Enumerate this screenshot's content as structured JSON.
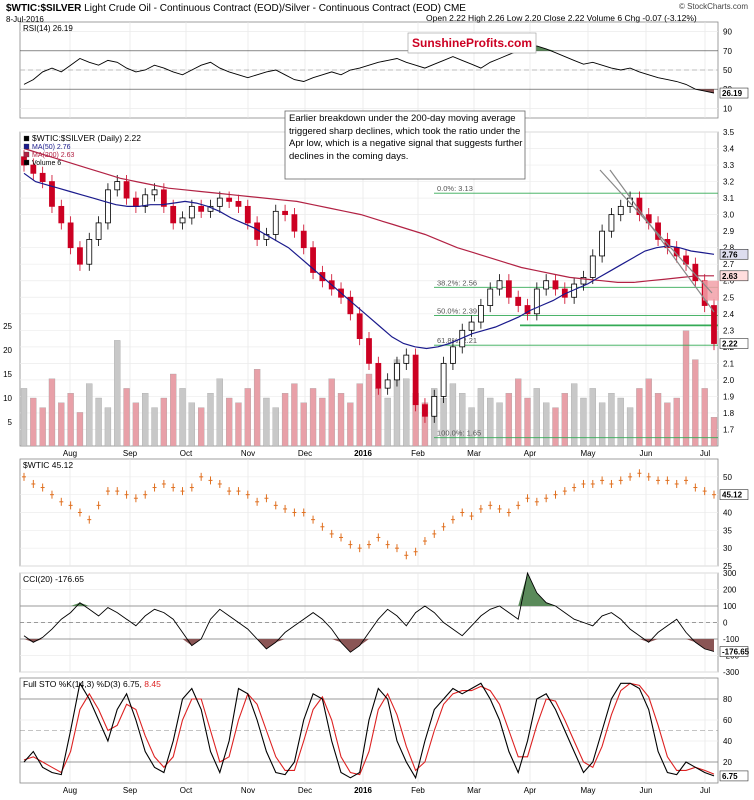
{
  "header": {
    "symbol": "$WTIC:$SILVER",
    "description": "Light Crude Oil - Continuous Contract (EOD)/Silver - Continuous Contract (EOD)",
    "exchange": "CME",
    "date": "8-Jul-2016",
    "ohlc": "Open 2.22  High 2.26  Low 2.20  Close 2.22  Volume 6  Chg -0.07 (-3.12%)",
    "copyright": "© StockCharts.com",
    "watermark": "SunshineProfits.com"
  },
  "colors": {
    "price_up": "#000000",
    "price_down": "#cc0022",
    "ma50": "#1a1a8c",
    "ma200": "#b22244",
    "fib": "#33aa55",
    "volume": "#c8c8c8",
    "volume_down": "#e8a0a8",
    "wtic": "#e07020",
    "fill_green": "#5a8a5a",
    "fill_red": "#8a5555",
    "sto_fast": "#000000",
    "sto_slow": "#dd2222",
    "watermark": "#cc0022"
  },
  "chart_data": [
    {
      "panel": "rsi",
      "type": "line",
      "legend": "RSI(14) 26.19",
      "last_label": "26.19",
      "ylim": [
        0,
        100
      ],
      "yticks": [
        10,
        30,
        50,
        70,
        90
      ],
      "levels": [
        30,
        70
      ],
      "values": [
        35,
        40,
        48,
        52,
        48,
        55,
        62,
        58,
        55,
        60,
        58,
        52,
        48,
        50,
        55,
        52,
        48,
        45,
        50,
        55,
        58,
        52,
        48,
        45,
        42,
        45,
        48,
        50,
        45,
        40,
        38,
        42,
        45,
        48,
        45,
        50,
        52,
        55,
        58,
        60,
        62,
        58,
        55,
        52,
        56,
        60,
        64,
        60,
        56,
        52,
        58,
        62,
        66,
        70,
        72,
        75,
        72,
        68,
        64,
        60,
        56,
        58,
        55,
        52,
        50,
        52,
        48,
        45,
        42,
        40,
        38,
        35,
        30,
        28,
        26
      ]
    },
    {
      "panel": "price",
      "type": "candlestick",
      "legend": [
        "$WTIC:$SILVER (Daily) 2.22",
        "MA(50) 2.76",
        "MA(200) 2.63",
        "Volume 6"
      ],
      "ylim": [
        1.6,
        3.5
      ],
      "yticks": [
        1.7,
        1.8,
        1.9,
        2.0,
        2.1,
        2.2,
        2.3,
        2.4,
        2.5,
        2.6,
        2.7,
        2.8,
        2.9,
        3.0,
        3.1,
        3.2,
        3.3,
        3.4,
        3.5
      ],
      "last_price_label": "2.22",
      "ma50_label": "2.76",
      "ma200_label": "2.63",
      "annotation": "Earlier breakdown under the 200-day moving average triggered sharp declines, which took the ratio under the Apr low, which is a negative signal that suggests further declines in the coming days.",
      "close": [
        3.3,
        3.25,
        3.2,
        3.05,
        2.95,
        2.8,
        2.7,
        2.85,
        2.95,
        3.15,
        3.2,
        3.1,
        3.05,
        3.12,
        3.15,
        3.05,
        2.95,
        2.98,
        3.05,
        3.02,
        3.05,
        3.1,
        3.08,
        3.05,
        2.95,
        2.85,
        2.88,
        3.02,
        3.0,
        2.9,
        2.8,
        2.65,
        2.6,
        2.55,
        2.5,
        2.4,
        2.25,
        2.1,
        1.95,
        2.0,
        2.1,
        2.15,
        1.85,
        1.78,
        1.9,
        2.1,
        2.2,
        2.3,
        2.35,
        2.45,
        2.55,
        2.6,
        2.5,
        2.45,
        2.4,
        2.55,
        2.6,
        2.55,
        2.5,
        2.58,
        2.62,
        2.75,
        2.9,
        3.0,
        3.05,
        3.1,
        3.0,
        2.95,
        2.85,
        2.8,
        2.75,
        2.7,
        2.6,
        2.45,
        2.22
      ],
      "ma50": [
        3.25,
        3.2,
        3.18,
        3.16,
        3.14,
        3.12,
        3.1,
        3.08,
        3.06,
        3.05,
        3.05,
        3.06,
        3.06,
        3.07,
        3.08,
        3.07,
        3.05,
        3.02,
        2.98,
        2.95,
        2.92,
        2.88,
        2.84,
        2.8,
        2.74,
        2.68,
        2.62,
        2.56,
        2.5,
        2.44,
        2.38,
        2.32,
        2.26,
        2.22,
        2.2,
        2.19,
        2.2,
        2.22,
        2.25,
        2.28,
        2.3,
        2.32,
        2.35,
        2.38,
        2.42,
        2.45,
        2.48,
        2.52,
        2.55,
        2.58,
        2.62,
        2.66,
        2.7,
        2.74,
        2.78,
        2.8,
        2.81,
        2.8,
        2.78,
        2.77,
        2.76
      ],
      "ma200": [
        3.4,
        3.37,
        3.34,
        3.31,
        3.28,
        3.25,
        3.22,
        3.2,
        3.18,
        3.16,
        3.15,
        3.14,
        3.13,
        3.12,
        3.11,
        3.1,
        3.09,
        3.08,
        3.06,
        3.04,
        3.02,
        3.0,
        2.97,
        2.94,
        2.91,
        2.88,
        2.84,
        2.8,
        2.77,
        2.74,
        2.71,
        2.68,
        2.66,
        2.64,
        2.62,
        2.61,
        2.6,
        2.59,
        2.59,
        2.6,
        2.61,
        2.62,
        2.63,
        2.63
      ],
      "fib_levels": [
        {
          "label": "0.0%: 3.13",
          "value": 3.13
        },
        {
          "label": "38.2%: 2.56",
          "value": 2.56
        },
        {
          "label": "50.0%: 2.39",
          "value": 2.39
        },
        {
          "label": "61.8%: 2.21",
          "value": 2.21
        },
        {
          "label": "100.0%: 1.65",
          "value": 1.65
        }
      ],
      "volume_ylim": [
        0,
        25
      ],
      "volume_ticks": [
        5,
        10,
        15,
        20,
        25
      ],
      "volume": [
        12,
        10,
        8,
        14,
        9,
        11,
        7,
        13,
        10,
        8,
        22,
        12,
        9,
        11,
        8,
        10,
        15,
        12,
        9,
        8,
        11,
        14,
        10,
        9,
        12,
        16,
        10,
        8,
        11,
        13,
        9,
        12,
        10,
        14,
        11,
        9,
        13,
        15,
        12,
        10,
        18,
        14,
        11,
        9,
        12,
        10,
        13,
        11,
        8,
        12,
        10,
        9,
        11,
        14,
        10,
        12,
        9,
        8,
        11,
        13,
        10,
        12,
        9,
        11,
        10,
        8,
        12,
        14,
        11,
        9,
        10,
        24,
        18,
        12,
        6
      ]
    },
    {
      "panel": "wtic",
      "type": "ohlc",
      "legend": "$WTIC 45.12",
      "last_label": "45.12",
      "ylim": [
        25,
        55
      ],
      "yticks": [
        25,
        30,
        35,
        40,
        45,
        50
      ],
      "values": [
        50,
        48,
        47,
        45,
        43,
        42,
        40,
        38,
        42,
        46,
        46,
        45,
        44,
        45,
        47,
        48,
        47,
        46,
        47,
        50,
        49,
        48,
        46,
        46,
        45,
        43,
        44,
        42,
        41,
        40,
        40,
        38,
        36,
        34,
        33,
        31,
        30,
        31,
        33,
        31,
        30,
        28,
        29,
        32,
        34,
        36,
        38,
        40,
        39,
        41,
        42,
        41,
        40,
        42,
        44,
        43,
        44,
        45,
        46,
        47,
        48,
        48,
        49,
        48,
        49,
        50,
        51,
        50,
        49,
        49,
        48,
        49,
        47,
        46,
        45
      ]
    },
    {
      "panel": "cci",
      "type": "line",
      "legend": "CCI(20) -176.65",
      "last_label": "-176.65",
      "ylim": [
        -300,
        300
      ],
      "yticks": [
        -300,
        -200,
        -100,
        0,
        100,
        200,
        300
      ],
      "levels": [
        -100,
        0,
        100
      ],
      "values": [
        -80,
        -120,
        -90,
        -40,
        20,
        60,
        120,
        80,
        40,
        90,
        60,
        20,
        -20,
        40,
        80,
        60,
        20,
        -60,
        -140,
        -100,
        20,
        80,
        40,
        0,
        -40,
        -100,
        -160,
        -120,
        -60,
        -20,
        20,
        60,
        20,
        -40,
        -120,
        -180,
        -140,
        -60,
        20,
        80,
        40,
        -20,
        60,
        100,
        60,
        0,
        -40,
        -80,
        -20,
        40,
        80,
        100,
        60,
        20,
        300,
        180,
        120,
        100,
        60,
        20,
        0,
        -20,
        40,
        60,
        20,
        -40,
        -80,
        -120,
        -60,
        -20,
        20,
        -60,
        -120,
        -160,
        -176
      ]
    },
    {
      "panel": "sto",
      "type": "line",
      "legend_prefix": "Full STO %K(14,3) %D(3)",
      "k_label": "6.75",
      "d_label": "8.45",
      "ylim": [
        0,
        100
      ],
      "yticks": [
        20,
        40,
        60,
        80
      ],
      "levels": [
        20,
        80
      ],
      "k": [
        20,
        30,
        15,
        10,
        8,
        50,
        95,
        80,
        60,
        40,
        70,
        85,
        60,
        30,
        15,
        10,
        40,
        80,
        90,
        70,
        30,
        10,
        40,
        90,
        85,
        60,
        30,
        10,
        8,
        20,
        60,
        85,
        80,
        40,
        10,
        5,
        10,
        60,
        90,
        80,
        40,
        20,
        5,
        40,
        70,
        80,
        90,
        85,
        90,
        95,
        80,
        60,
        30,
        10,
        40,
        80,
        85,
        70,
        50,
        30,
        10,
        20,
        50,
        80,
        95,
        95,
        90,
        70,
        30,
        10,
        8,
        20,
        15,
        10,
        6.75
      ],
      "d": [
        22,
        25,
        20,
        15,
        10,
        30,
        70,
        85,
        70,
        50,
        55,
        75,
        70,
        45,
        25,
        15,
        25,
        60,
        80,
        80,
        50,
        20,
        25,
        60,
        85,
        75,
        50,
        25,
        12,
        12,
        40,
        70,
        82,
        60,
        25,
        10,
        8,
        30,
        70,
        85,
        65,
        35,
        12,
        20,
        50,
        75,
        85,
        88,
        88,
        92,
        88,
        75,
        50,
        25,
        25,
        55,
        80,
        78,
        60,
        40,
        20,
        15,
        35,
        65,
        88,
        95,
        93,
        82,
        55,
        25,
        12,
        12,
        15,
        12,
        8.45
      ]
    }
  ],
  "x_axis": {
    "labels": [
      "Aug",
      "Sep",
      "Oct",
      "Nov",
      "Dec",
      "2016",
      "Feb",
      "Mar",
      "Apr",
      "May",
      "Jun",
      "Jul"
    ]
  }
}
